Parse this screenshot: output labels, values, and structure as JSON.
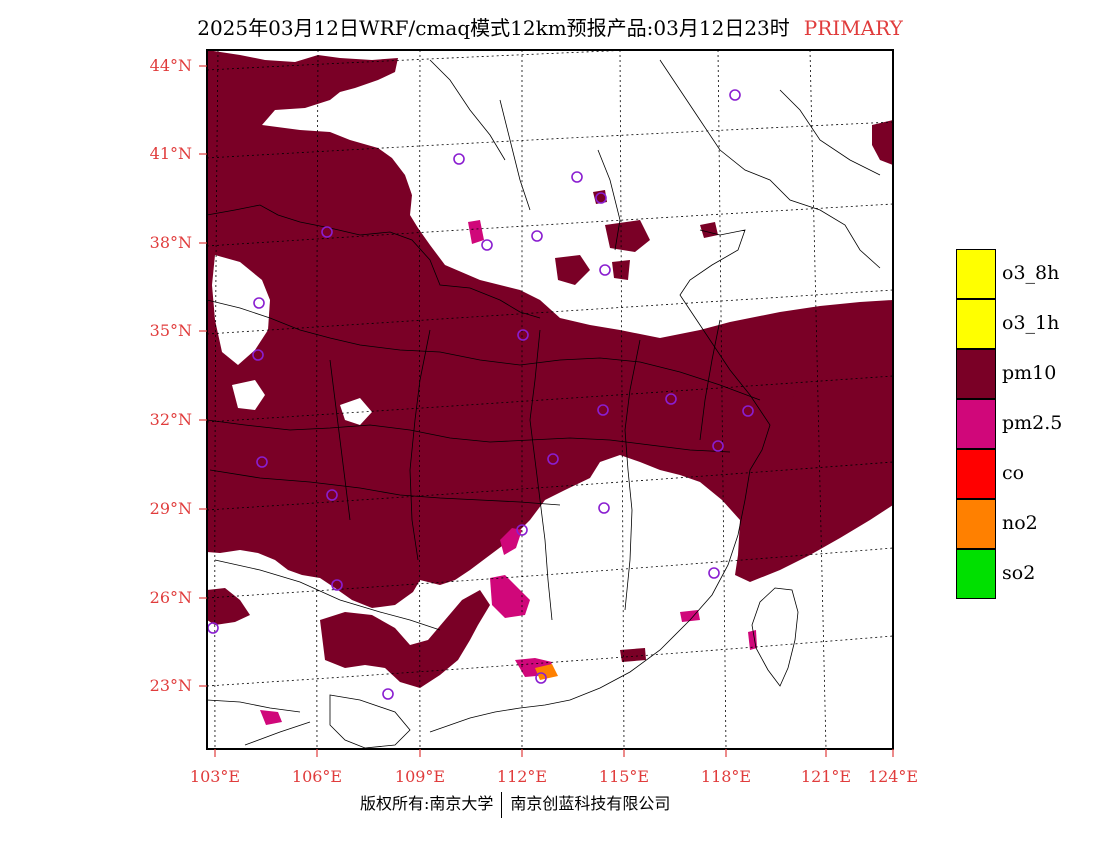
{
  "title": {
    "main": "2025年03月12日WRF/cmaq模式12km预报产品:03月12日23时",
    "tag": "PRIMARY"
  },
  "colors": {
    "tag_red": "#e03c3c",
    "pm10": "#7a0026",
    "pm25": "#d0077a",
    "no2": "#ff8000",
    "site_marker": "#8a1ed0"
  },
  "axes": {
    "lat_labels": [
      "44°N",
      "41°N",
      "38°N",
      "35°N",
      "32°N",
      "29°N",
      "26°N",
      "23°N"
    ],
    "lon_labels": [
      "103°E",
      "106°E",
      "109°E",
      "112°E",
      "115°E",
      "118°E",
      "121°E",
      "124°E"
    ]
  },
  "legend": {
    "items": [
      {
        "label": "o3_8h",
        "color": "#ffff00"
      },
      {
        "label": "o3_1h",
        "color": "#ffff00"
      },
      {
        "label": "pm10",
        "color": "#7a0026"
      },
      {
        "label": "pm2.5",
        "color": "#d0077a"
      },
      {
        "label": "co",
        "color": "#ff0000"
      },
      {
        "label": "no2",
        "color": "#ff8000"
      },
      {
        "label": "so2",
        "color": "#00e000"
      }
    ]
  },
  "footer": {
    "left": "版权所有:南京大学",
    "right": "南京创蓝科技有限公司"
  }
}
